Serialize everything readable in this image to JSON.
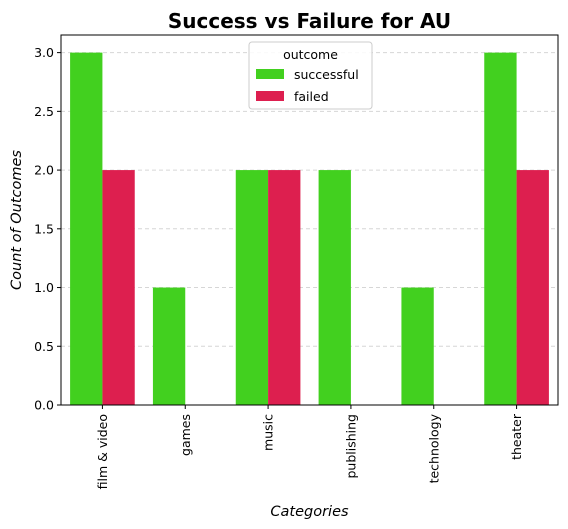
{
  "colors": {
    "successful": "#42d01f",
    "failed": "#dd1f4f",
    "grid": "#d6d6d6",
    "axis": "#000000"
  },
  "chart_data": {
    "type": "bar",
    "title": "Success vs Failure for AU",
    "xlabel": "Categories",
    "ylabel": "Count of Outcomes",
    "categories": [
      "film & video",
      "games",
      "music",
      "publishing",
      "technology",
      "theater"
    ],
    "series": [
      {
        "name": "successful",
        "values": [
          3,
          1,
          2,
          2,
          1,
          3
        ]
      },
      {
        "name": "failed",
        "values": [
          2,
          0,
          2,
          0,
          0,
          2
        ]
      }
    ],
    "ylim": [
      0,
      3.15
    ],
    "yticks": [
      "0.0",
      "0.5",
      "1.0",
      "1.5",
      "2.0",
      "2.5",
      "3.0"
    ],
    "grid": "y-dashed",
    "legend": {
      "title": "outcome",
      "placement": "top-center"
    },
    "x_tick_rotation": "vertical"
  }
}
